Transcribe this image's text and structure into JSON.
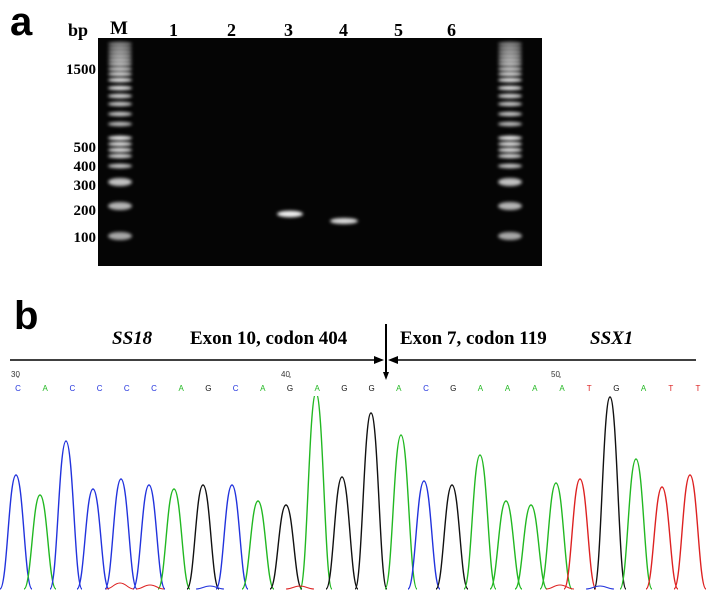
{
  "panel_a": {
    "letter": "a",
    "bp_label": "bp",
    "lanes": [
      "M",
      "1",
      "2",
      "3",
      "4",
      "5",
      "6"
    ],
    "ladder_labels": [
      "1500",
      "500",
      "400",
      "300",
      "200",
      "100"
    ]
  },
  "panel_b": {
    "letter": "b",
    "left_gene": "SS18",
    "left_exon": "Exon 10, codon 404",
    "right_exon": "Exon 7, codon 119",
    "right_gene": "SSX1",
    "positions": [
      "30",
      "40",
      "50"
    ],
    "bases": [
      "C",
      "A",
      "C",
      "C",
      "C",
      "C",
      "A",
      "G",
      "C",
      "A",
      "G",
      "A",
      "G",
      "G",
      "A",
      "C",
      "G",
      "A",
      "A",
      "A",
      "A",
      "T",
      "G",
      "A",
      "T",
      "T"
    ],
    "base_colors": {
      "A": "#22b822",
      "C": "#2233dd",
      "G": "#111111",
      "T": "#dd2222"
    }
  }
}
